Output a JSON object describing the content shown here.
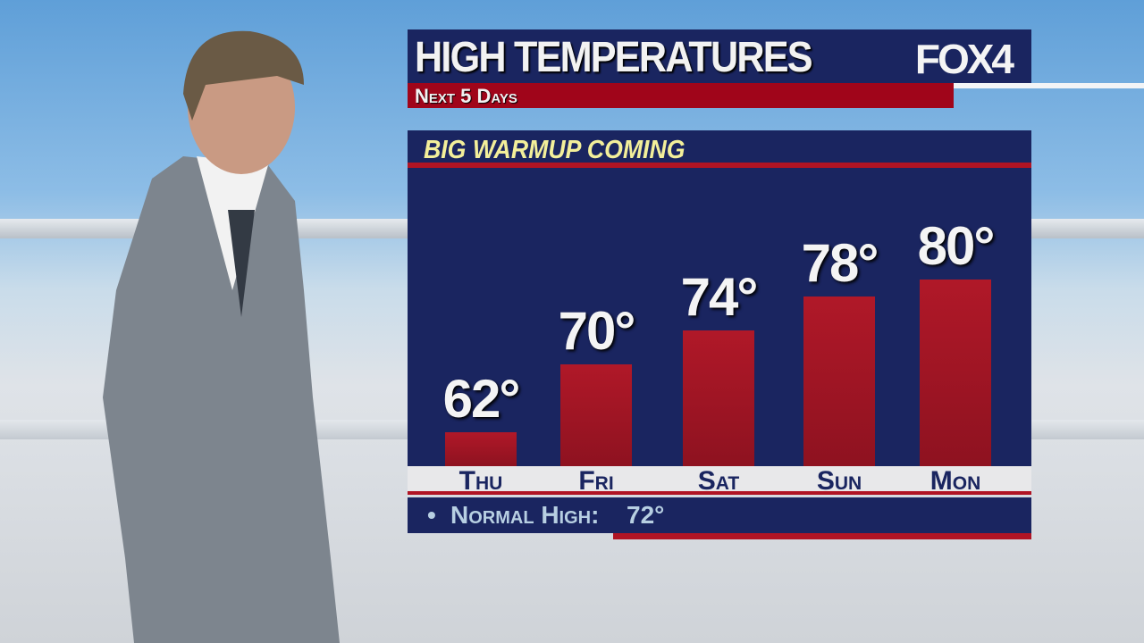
{
  "header": {
    "title": "HIGH TEMPERATURES",
    "logo": "FOX4",
    "subtitle": "Next 5 Days"
  },
  "colors": {
    "navy": "#1a2560",
    "red": "#a0051a",
    "headline": "#f3ef9a"
  },
  "chart_data": {
    "type": "bar",
    "title": "BIG WARMUP COMING",
    "categories": [
      "Thu",
      "Fri",
      "Sat",
      "Sun",
      "Mon"
    ],
    "values": [
      62,
      70,
      74,
      78,
      80
    ],
    "labels": [
      "62°",
      "70°",
      "74°",
      "78°",
      "80°"
    ],
    "normal": {
      "label": "Normal High:",
      "value": "72°"
    }
  }
}
